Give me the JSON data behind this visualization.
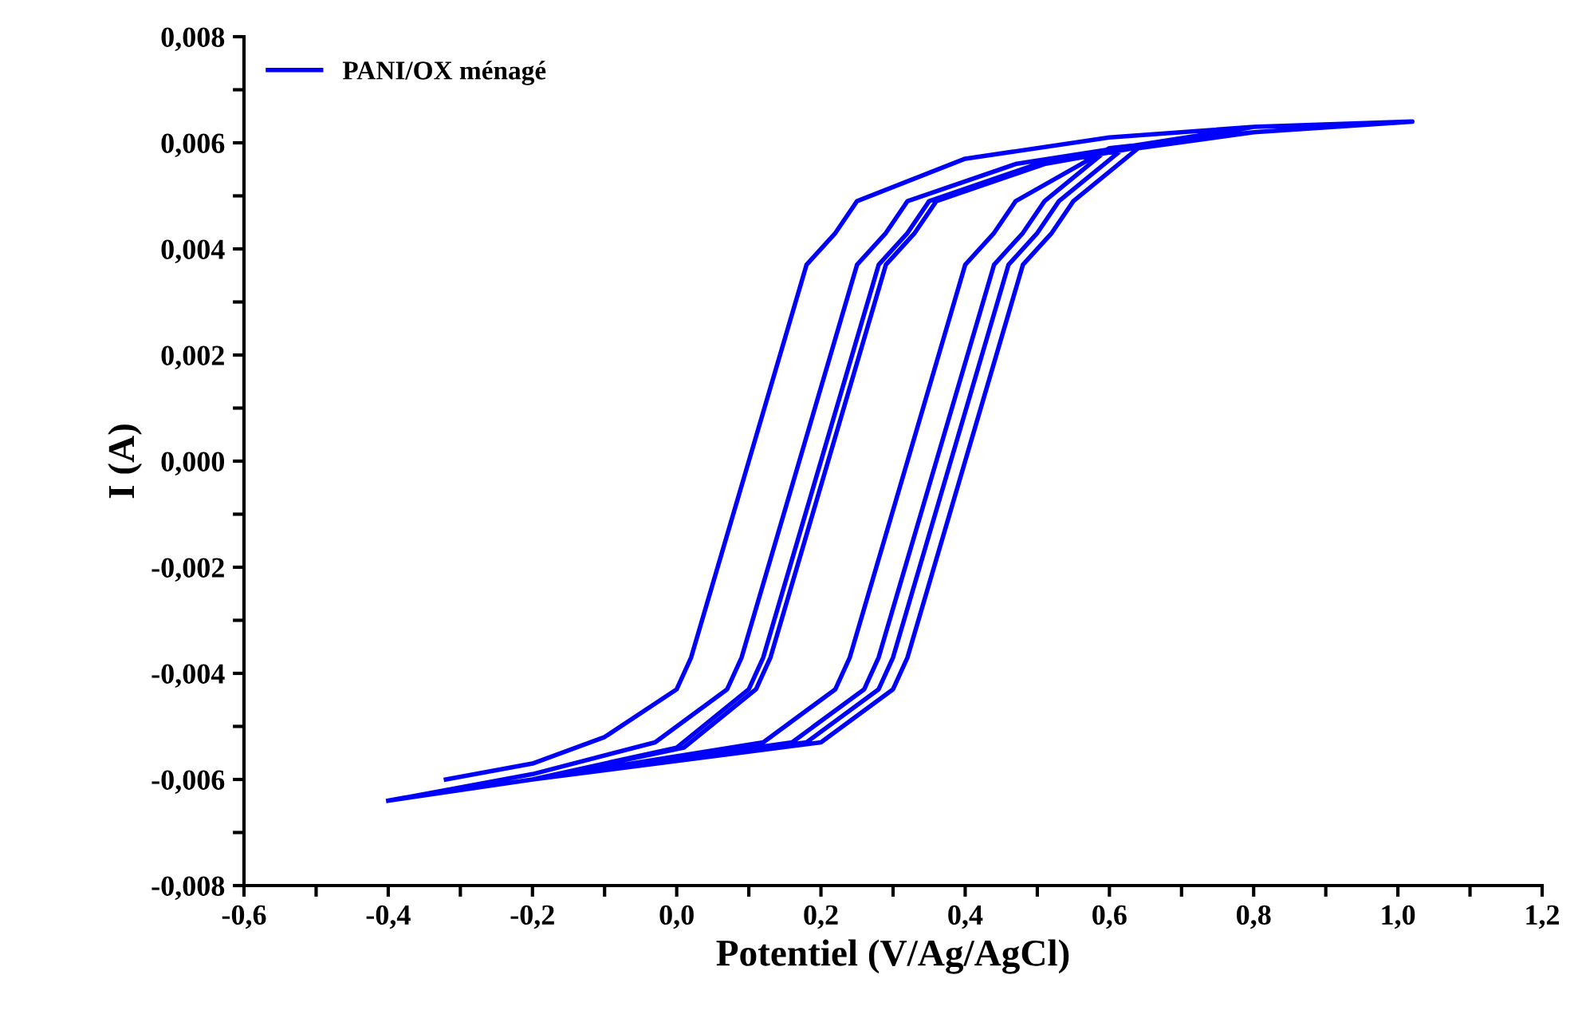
{
  "chart_data": {
    "type": "line",
    "xlabel": "Potentiel (V/Ag/AgCl)",
    "ylabel": "I (A)",
    "xlim": [
      -0.6,
      1.2
    ],
    "ylim": [
      -0.008,
      0.008
    ],
    "xticks": [
      {
        "value": -0.6,
        "label": "-0,6"
      },
      {
        "value": -0.5,
        "label": null
      },
      {
        "value": -0.4,
        "label": "-0,4"
      },
      {
        "value": -0.3,
        "label": null
      },
      {
        "value": -0.2,
        "label": "-0,2"
      },
      {
        "value": -0.1,
        "label": null
      },
      {
        "value": 0.0,
        "label": "0,0"
      },
      {
        "value": 0.1,
        "label": null
      },
      {
        "value": 0.2,
        "label": "0,2"
      },
      {
        "value": 0.3,
        "label": null
      },
      {
        "value": 0.4,
        "label": "0,4"
      },
      {
        "value": 0.5,
        "label": null
      },
      {
        "value": 0.6,
        "label": "0,6"
      },
      {
        "value": 0.7,
        "label": null
      },
      {
        "value": 0.8,
        "label": "0,8"
      },
      {
        "value": 0.9,
        "label": null
      },
      {
        "value": 1.0,
        "label": "1,0"
      },
      {
        "value": 1.1,
        "label": null
      },
      {
        "value": 1.2,
        "label": "1,2"
      }
    ],
    "yticks": [
      {
        "value": -0.008,
        "label": "-0,008"
      },
      {
        "value": -0.007,
        "label": null
      },
      {
        "value": -0.006,
        "label": "-0,006"
      },
      {
        "value": -0.005,
        "label": null
      },
      {
        "value": -0.004,
        "label": "-0,004"
      },
      {
        "value": -0.003,
        "label": null
      },
      {
        "value": -0.002,
        "label": "-0,002"
      },
      {
        "value": -0.001,
        "label": null
      },
      {
        "value": 0.0,
        "label": "0,000"
      },
      {
        "value": 0.001,
        "label": null
      },
      {
        "value": 0.002,
        "label": "0,002"
      },
      {
        "value": 0.003,
        "label": null
      },
      {
        "value": 0.004,
        "label": "0,004"
      },
      {
        "value": 0.005,
        "label": null
      },
      {
        "value": 0.006,
        "label": "0,006"
      },
      {
        "value": 0.007,
        "label": null
      },
      {
        "value": 0.008,
        "label": "0,008"
      }
    ],
    "grid": false,
    "legend": "top left",
    "marker": "none",
    "line_style": "solid",
    "series": [
      {
        "name": "PANI/OX ménagé",
        "color": "#0000ff",
        "x": [
          -0.32,
          -0.2,
          -0.1,
          0.0,
          0.02,
          0.1,
          0.18,
          0.22,
          0.25,
          0.4,
          0.6,
          0.8,
          1.02,
          0.8,
          0.6,
          0.47,
          0.44,
          0.4,
          0.32,
          0.24,
          0.22,
          0.12,
          -0.2,
          -0.4,
          -0.2,
          -0.03,
          0.07,
          0.09,
          0.17,
          0.25,
          0.29,
          0.32,
          0.47,
          0.8,
          1.02,
          0.8,
          0.6,
          0.51,
          0.48,
          0.44,
          0.36,
          0.28,
          0.26,
          0.16,
          -0.2,
          -0.4,
          -0.2,
          0.0,
          0.1,
          0.12,
          0.2,
          0.28,
          0.32,
          0.35,
          0.5,
          0.8,
          1.02,
          0.8,
          0.62,
          0.53,
          0.5,
          0.46,
          0.38,
          0.3,
          0.28,
          0.18,
          -0.2,
          -0.4,
          -0.2,
          0.01,
          0.11,
          0.13,
          0.21,
          0.29,
          0.33,
          0.36,
          0.51,
          0.8,
          1.02,
          0.8,
          0.64,
          0.55,
          0.52,
          0.48,
          0.4,
          0.32,
          0.3,
          0.2,
          -0.2,
          -0.4,
          -0.2,
          0.01,
          0.11,
          0.13,
          0.21,
          0.29,
          0.33,
          0.36,
          0.51,
          0.8,
          1.02,
          0.8,
          0.64,
          0.55,
          0.52,
          0.48,
          0.4,
          0.32,
          0.3,
          0.2,
          -0.2,
          -0.4
        ],
        "values": [
          -0.006,
          -0.0057,
          -0.0052,
          -0.0043,
          -0.0037,
          0.0,
          0.0037,
          0.0043,
          0.0049,
          0.0057,
          0.0061,
          0.0063,
          0.0064,
          0.0062,
          0.0059,
          0.0049,
          0.0043,
          0.0037,
          0.0,
          -0.0037,
          -0.0043,
          -0.0053,
          -0.006,
          -0.0064,
          -0.0059,
          -0.0053,
          -0.0043,
          -0.0037,
          0.0,
          0.0037,
          0.0043,
          0.0049,
          0.0056,
          0.0063,
          0.0064,
          0.0062,
          0.0059,
          0.0049,
          0.0043,
          0.0037,
          0.0,
          -0.0037,
          -0.0043,
          -0.0053,
          -0.006,
          -0.0064,
          -0.006,
          -0.0054,
          -0.0043,
          -0.0037,
          0.0,
          0.0037,
          0.0043,
          0.0049,
          0.0056,
          0.0063,
          0.0064,
          0.0062,
          0.0059,
          0.0049,
          0.0043,
          0.0037,
          0.0,
          -0.0037,
          -0.0043,
          -0.0053,
          -0.006,
          -0.0064,
          -0.006,
          -0.0054,
          -0.0043,
          -0.0037,
          0.0,
          0.0037,
          0.0043,
          0.0049,
          0.0056,
          0.0063,
          0.0064,
          0.0062,
          0.0059,
          0.0049,
          0.0043,
          0.0037,
          0.0,
          -0.0037,
          -0.0043,
          -0.0053,
          -0.006,
          -0.0064,
          -0.006,
          -0.0054,
          -0.0043,
          -0.0037,
          0.0,
          0.0037,
          0.0043,
          0.0049,
          0.0056,
          0.0063,
          0.0064,
          0.0062,
          0.0059,
          0.0049,
          0.0043,
          0.0037,
          0.0,
          -0.0037,
          -0.0043,
          -0.0053,
          -0.006,
          -0.0064
        ]
      }
    ]
  }
}
